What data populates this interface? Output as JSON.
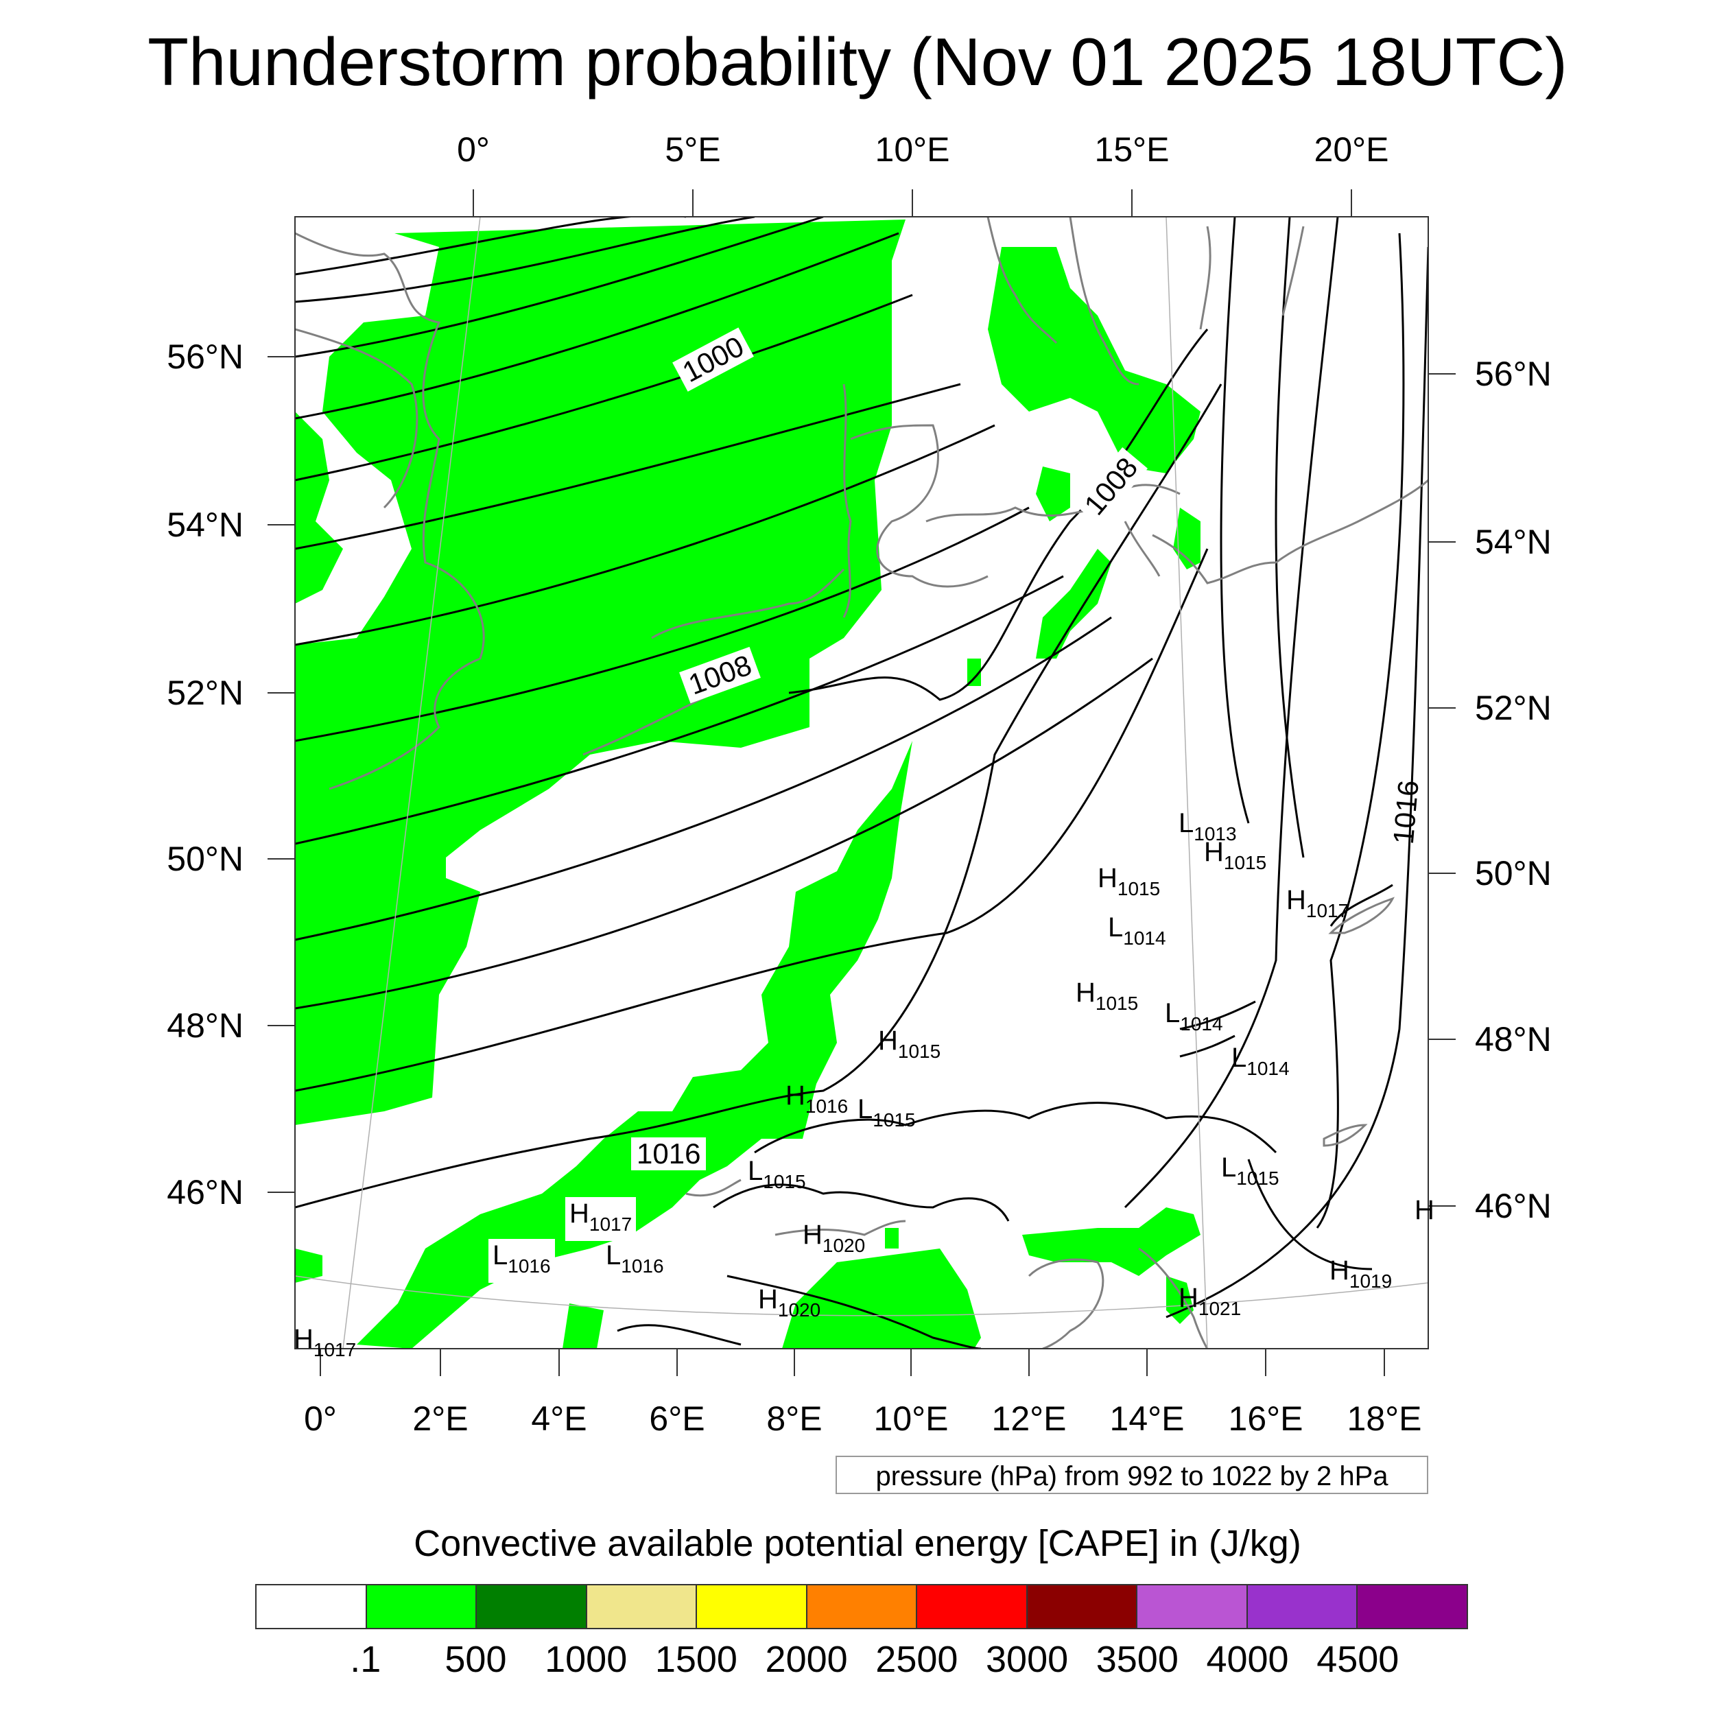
{
  "title": "Thunderstorm probability (Nov 01 2025 18UTC)",
  "map": {
    "top_lon_labels": [
      "0°",
      "5°E",
      "10°E",
      "15°E",
      "20°E"
    ],
    "bottom_lon_labels": [
      "0°",
      "2°E",
      "4°E",
      "6°E",
      "8°E",
      "10°E",
      "12°E",
      "14°E",
      "16°E",
      "18°E"
    ],
    "left_lat_labels": [
      "56°N",
      "54°N",
      "52°N",
      "50°N",
      "48°N",
      "46°N"
    ],
    "right_lat_labels": [
      "56°N",
      "54°N",
      "52°N",
      "50°N",
      "48°N",
      "46°N"
    ],
    "isobar_labels": [
      "1000",
      "1008",
      "1008",
      "1016",
      "1016"
    ],
    "pressure_centers": [
      {
        "type": "L",
        "value": "1013"
      },
      {
        "type": "H",
        "value": "1015"
      },
      {
        "type": "H",
        "value": "1015"
      },
      {
        "type": "H",
        "value": "1017"
      },
      {
        "type": "L",
        "value": "1014"
      },
      {
        "type": "H",
        "value": "1015"
      },
      {
        "type": "L",
        "value": "1014"
      },
      {
        "type": "L",
        "value": "1014"
      },
      {
        "type": "H",
        "value": "1015"
      },
      {
        "type": "H",
        "value": "1016"
      },
      {
        "type": "L",
        "value": "1015"
      },
      {
        "type": "L",
        "value": "1015"
      },
      {
        "type": "L",
        "value": "1015"
      },
      {
        "type": "H",
        "value": "1017"
      },
      {
        "type": "L",
        "value": "1016"
      },
      {
        "type": "L",
        "value": "1016"
      },
      {
        "type": "H",
        "value": "1020"
      },
      {
        "type": "H",
        "value": "1020"
      },
      {
        "type": "H",
        "value": "1021"
      },
      {
        "type": "H",
        "value": "1019"
      },
      {
        "type": "H",
        "value": "1017"
      },
      {
        "type": "H",
        "value": ""
      }
    ],
    "cape_fill_color": "#00ff00",
    "isobar_color": "#000000",
    "coastline_color": "#808080"
  },
  "pressure_note": "pressure (hPa) from 992 to 1022 by 2 hPa",
  "colorbar": {
    "title": "Convective available potential energy [CAPE] in (J/kg)",
    "colors": [
      "#ffffff",
      "#00ff00",
      "#007f00",
      "#f0e68c",
      "#ffff00",
      "#ff8000",
      "#ff0000",
      "#8b0000",
      "#ba55d3",
      "#9932cc",
      "#8b008b"
    ],
    "labels": [
      ".1",
      "500",
      "1000",
      "1500",
      "2000",
      "2500",
      "3000",
      "3500",
      "4000",
      "4500"
    ]
  }
}
